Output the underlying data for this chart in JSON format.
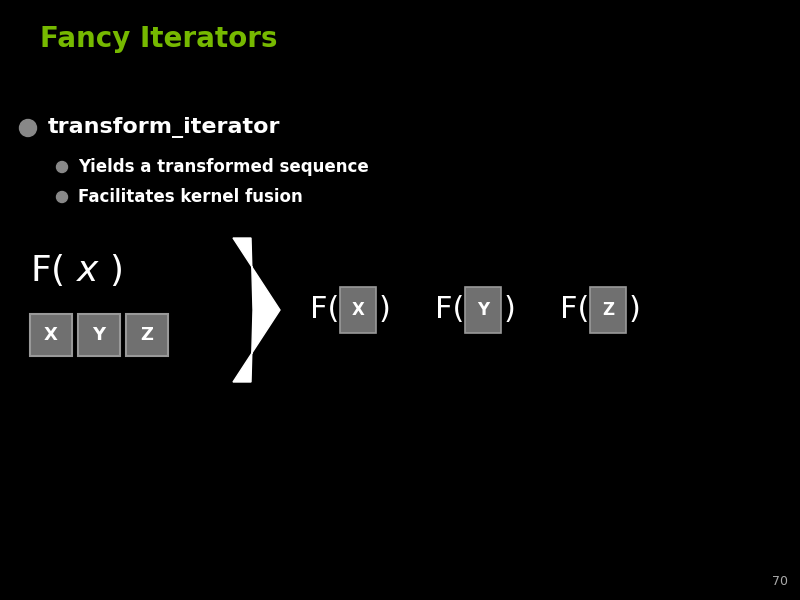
{
  "background_color": "#000000",
  "title": "Fancy Iterators",
  "title_color": "#76b900",
  "title_fontsize": 20,
  "title_bold": true,
  "bullet1_text": "transform_iterator",
  "bullet1_color": "#ffffff",
  "bullet1_fontsize": 16,
  "bullet1_bold": true,
  "sub_bullet1": "Yields a transformed sequence",
  "sub_bullet2": "Facilitates kernel fusion",
  "sub_bullet_color": "#ffffff",
  "sub_bullet_fontsize": 12,
  "box_color": "#808080",
  "box_labels": [
    "X",
    "Y",
    "Z"
  ],
  "box_label_color": "#ffffff",
  "fx_text_color": "#ffffff",
  "page_number": "70",
  "page_number_color": "#aaaaaa",
  "page_number_fontsize": 9,
  "bullet_color": "#888888",
  "sub_bullet_dot_color": "#888888"
}
